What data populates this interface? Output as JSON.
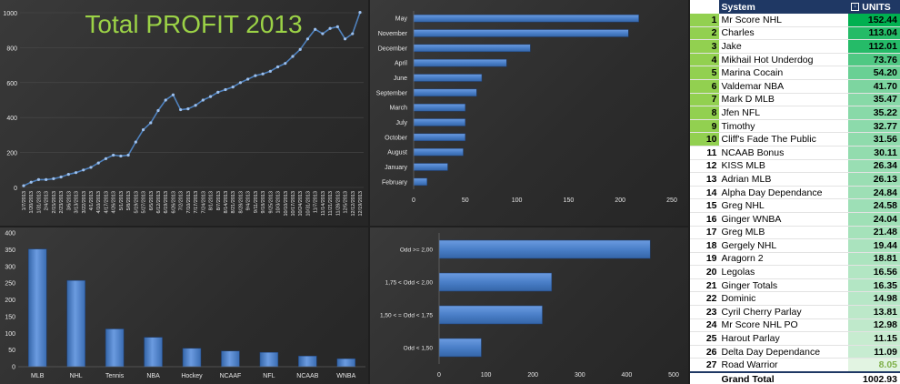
{
  "colors": {
    "bar": "#4a7fc8",
    "line": "#4f81bd",
    "title": "#9bd246",
    "top10": "#92d050",
    "heat_high": "#00b050",
    "heat_low": "#e2f4e2"
  },
  "chart_data": [
    {
      "type": "line",
      "title": "Total PROFIT 2013",
      "ylim": [
        0,
        1000
      ],
      "y_ticks": [
        "0",
        "200",
        "400",
        "600",
        "800",
        "1000"
      ],
      "x_ticks": [
        "1/7/2013",
        "1/20/2013",
        "1/31/2013",
        "2/4/2013",
        "2/15/2013",
        "2/23/2013",
        "3/6/2013",
        "3/13/2013",
        "3/22/2013",
        "4/1/2013",
        "4/10/2013",
        "4/17/2013",
        "4/26/2013",
        "5/1/2013",
        "5/8/2013",
        "5/19/2013",
        "5/27/2013",
        "6/5/2013",
        "6/12/2013",
        "6/19/2013",
        "6/26/2013",
        "7/2/2013",
        "7/10/2013",
        "7/17/2013",
        "7/24/2013",
        "8/1/2013",
        "8/7/2013",
        "8/14/2013",
        "8/21/2013",
        "8/28/2013",
        "9/4/2013",
        "9/11/2013",
        "9/18/2013",
        "9/25/2013",
        "10/3/2013",
        "10/10/2013",
        "10/17/2013",
        "10/24/2013",
        "10/31/2013",
        "11/7/2013",
        "11/14/2013",
        "11/21/2013",
        "11/28/2013",
        "12/5/2013",
        "12/12/2013",
        "12/19/2013"
      ],
      "values": [
        10,
        30,
        45,
        45,
        50,
        60,
        75,
        85,
        100,
        115,
        140,
        165,
        185,
        180,
        185,
        260,
        330,
        370,
        440,
        500,
        530,
        445,
        450,
        470,
        500,
        520,
        545,
        560,
        575,
        600,
        620,
        640,
        650,
        665,
        690,
        710,
        750,
        790,
        850,
        905,
        880,
        910,
        920,
        850,
        880,
        1002
      ]
    },
    {
      "type": "bar",
      "orientation": "horizontal",
      "categories": [
        "May",
        "November",
        "December",
        "April",
        "June",
        "September",
        "March",
        "July",
        "October",
        "August",
        "January",
        "February"
      ],
      "values": [
        218,
        208,
        113,
        90,
        66,
        61,
        50,
        50,
        50,
        48,
        33,
        13
      ],
      "xlim": [
        0,
        250
      ],
      "x_ticks": [
        "0",
        "50",
        "100",
        "150",
        "200",
        "250"
      ]
    },
    {
      "type": "bar",
      "categories": [
        "MLB",
        "NHL",
        "Tennis",
        "NBA",
        "Hockey",
        "NCAAF",
        "NFL",
        "NCAAB",
        "WNBA"
      ],
      "values": [
        352,
        258,
        113,
        88,
        55,
        47,
        43,
        32,
        24
      ],
      "ylim": [
        0,
        400
      ],
      "y_ticks": [
        "0",
        "50",
        "100",
        "150",
        "200",
        "250",
        "300",
        "350",
        "400"
      ]
    },
    {
      "type": "bar",
      "orientation": "horizontal",
      "categories": [
        "Odd >= 2,00",
        "1,75 < Odd < 2,00",
        "1,50 < = Odd < 1,75",
        "Odd < 1,50"
      ],
      "values": [
        450,
        240,
        220,
        90
      ],
      "xlim": [
        0,
        500
      ],
      "x_ticks": [
        "0",
        "100",
        "200",
        "300",
        "400",
        "500"
      ]
    }
  ],
  "table": {
    "headers": {
      "system": "System",
      "filter": "↓",
      "units": "UNITS"
    },
    "rows": [
      {
        "rank": "1",
        "name": "Mr Score NHL",
        "units": "152.44"
      },
      {
        "rank": "2",
        "name": "Charles",
        "units": "113.04"
      },
      {
        "rank": "3",
        "name": "Jake",
        "units": "112.01"
      },
      {
        "rank": "4",
        "name": "Mikhail Hot Underdog",
        "units": "73.76"
      },
      {
        "rank": "5",
        "name": "Marina Cocain",
        "units": "54.20"
      },
      {
        "rank": "6",
        "name": "Valdemar NBA",
        "units": "41.70"
      },
      {
        "rank": "7",
        "name": "Mark D MLB",
        "units": "35.47"
      },
      {
        "rank": "8",
        "name": "Jfen NFL",
        "units": "35.22"
      },
      {
        "rank": "9",
        "name": "Timothy",
        "units": "32.77"
      },
      {
        "rank": "10",
        "name": "Cliff's Fade The Public",
        "units": "31.56"
      },
      {
        "rank": "11",
        "name": "NCAAB Bonus",
        "units": "30.11"
      },
      {
        "rank": "12",
        "name": "KISS MLB",
        "units": "26.34"
      },
      {
        "rank": "13",
        "name": "Adrian MLB",
        "units": "26.13"
      },
      {
        "rank": "14",
        "name": "Alpha Day Dependance",
        "units": "24.84"
      },
      {
        "rank": "15",
        "name": "Greg NHL",
        "units": "24.58"
      },
      {
        "rank": "16",
        "name": "Ginger WNBA",
        "units": "24.04"
      },
      {
        "rank": "17",
        "name": "Greg MLB",
        "units": "21.48"
      },
      {
        "rank": "18",
        "name": "Gergely NHL",
        "units": "19.44"
      },
      {
        "rank": "19",
        "name": "Aragorn 2",
        "units": "18.81"
      },
      {
        "rank": "20",
        "name": "Legolas",
        "units": "16.56"
      },
      {
        "rank": "21",
        "name": "Ginger Totals",
        "units": "16.35"
      },
      {
        "rank": "22",
        "name": "Dominic",
        "units": "14.98"
      },
      {
        "rank": "23",
        "name": "Cyril Cherry Parlay",
        "units": "13.81"
      },
      {
        "rank": "24",
        "name": "Mr Score NHL PO",
        "units": "12.98"
      },
      {
        "rank": "25",
        "name": "Harout Parlay",
        "units": "11.15"
      },
      {
        "rank": "26",
        "name": "Delta Day Dependance",
        "units": "11.09"
      },
      {
        "rank": "27",
        "name": "Road Warrior",
        "units": "8.05"
      }
    ],
    "total": {
      "label": "Grand Total",
      "units": "1002.93"
    }
  }
}
